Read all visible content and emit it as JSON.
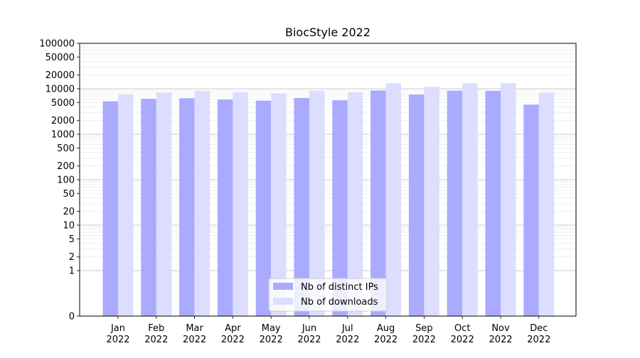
{
  "chart_data": {
    "type": "bar",
    "title": "BiocStyle 2022",
    "xlabel": "",
    "ylabel": "",
    "yscale": "symlog",
    "ylim": [
      0,
      100000
    ],
    "yticks": [
      {
        "value": 0,
        "label": "0"
      },
      {
        "value": 1,
        "label": "1"
      },
      {
        "value": 2,
        "label": "2"
      },
      {
        "value": 5,
        "label": "5"
      },
      {
        "value": 10,
        "label": "10"
      },
      {
        "value": 20,
        "label": "20"
      },
      {
        "value": 50,
        "label": "50"
      },
      {
        "value": 100,
        "label": "100"
      },
      {
        "value": 200,
        "label": "200"
      },
      {
        "value": 500,
        "label": "500"
      },
      {
        "value": 1000,
        "label": "1000"
      },
      {
        "value": 2000,
        "label": "2000"
      },
      {
        "value": 5000,
        "label": "5000"
      },
      {
        "value": 10000,
        "label": "10000"
      },
      {
        "value": 20000,
        "label": "20000"
      },
      {
        "value": 50000,
        "label": "50000"
      },
      {
        "value": 100000,
        "label": "100000"
      }
    ],
    "categories": [
      {
        "month": "Jan",
        "year": "2022"
      },
      {
        "month": "Feb",
        "year": "2022"
      },
      {
        "month": "Mar",
        "year": "2022"
      },
      {
        "month": "Apr",
        "year": "2022"
      },
      {
        "month": "May",
        "year": "2022"
      },
      {
        "month": "Jun",
        "year": "2022"
      },
      {
        "month": "Jul",
        "year": "2022"
      },
      {
        "month": "Aug",
        "year": "2022"
      },
      {
        "month": "Sep",
        "year": "2022"
      },
      {
        "month": "Oct",
        "year": "2022"
      },
      {
        "month": "Nov",
        "year": "2022"
      },
      {
        "month": "Dec",
        "year": "2022"
      }
    ],
    "series": [
      {
        "name": "Nb of distinct IPs",
        "color": "#aaaaff",
        "values": [
          5300,
          6000,
          6200,
          5800,
          5500,
          6300,
          5600,
          9200,
          7500,
          9100,
          9000,
          4500
        ]
      },
      {
        "name": "Nb of downloads",
        "color": "#ddddff",
        "values": [
          7600,
          8300,
          9000,
          8400,
          7900,
          9100,
          8400,
          13300,
          11000,
          13200,
          13300,
          8300
        ]
      }
    ],
    "grid": true,
    "legend_position": "bottom-center"
  }
}
